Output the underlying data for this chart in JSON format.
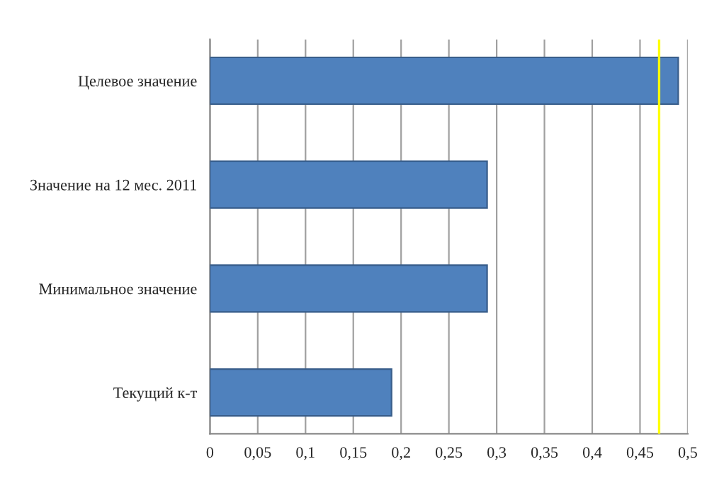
{
  "chart_data": {
    "type": "bar",
    "orientation": "horizontal",
    "categories": [
      "Целевое значение",
      "Значение на 12 мес. 2011",
      "Минимальное значение",
      "Текущий к-т"
    ],
    "values": [
      0.49,
      0.29,
      0.29,
      0.19
    ],
    "color": "#4f81bd",
    "xlim": [
      0,
      0.5
    ],
    "xticks": [
      0,
      {
        "value": 0.05,
        "label": "0,05"
      },
      {
        "value": 0.1,
        "label": "0,1"
      },
      {
        "value": 0.15,
        "label": "0,15"
      },
      {
        "value": 0.2,
        "label": "0,2"
      },
      {
        "value": 0.25,
        "label": "0,25"
      },
      {
        "value": 0.3,
        "label": "0,3"
      },
      {
        "value": 0.35,
        "label": "0,35"
      },
      {
        "value": 0.4,
        "label": "0,4"
      },
      {
        "value": 0.45,
        "label": "0,45"
      },
      {
        "value": 0.5,
        "label": "0,5"
      }
    ],
    "grid": "x",
    "ref_lines": [
      {
        "axis": "x",
        "value": 0.47,
        "color": "#ffff00"
      }
    ]
  }
}
